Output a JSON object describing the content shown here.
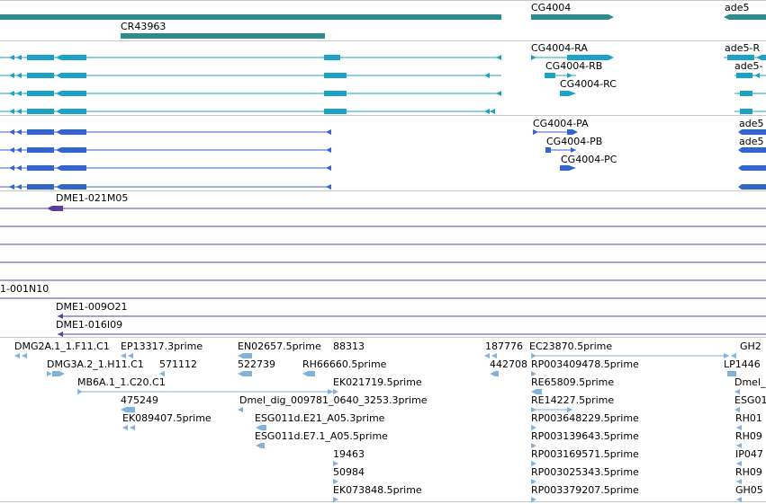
{
  "colors": {
    "gene": "#2e8b8b",
    "transcript_cds": "#1ba3c6",
    "protein": "#3366cc",
    "bac": "#5a3d9e",
    "est": "#7fb3dc",
    "separator": "#c8c8c8"
  },
  "gene_track": {
    "labels": [
      "CG4004",
      "ade5",
      "CR43963"
    ]
  },
  "transcript_track": {
    "labels": [
      "CG4004-RA",
      "ade5-R",
      "CG4004-RB",
      "ade5-",
      "CG4004-RC"
    ]
  },
  "protein_track": {
    "labels": [
      "CG4004-PA",
      "ade5",
      "CG4004-PB",
      "ade5",
      "CG4004-PC"
    ]
  },
  "bac_track": {
    "labels": [
      "DME1-021M05",
      "1-001N10",
      "DME1-009O21",
      "DME1-016I09"
    ]
  },
  "est_track": {
    "labels": [
      "DMG2A.1_1.F11.C1",
      "EP13317.3prime",
      "EN02657.5prime",
      "88313",
      "187776",
      "EC23870.5prime",
      "GH2",
      "DMG3A.2_1.H11.C1",
      "571112",
      "522739",
      "RH66660.5prime",
      "442708",
      "RP003409478.5prime",
      "LP1446",
      "MB6A.1_1.C20.C1",
      "EK021719.5prime",
      "RE65809.5prime",
      "Dmel_",
      "475249",
      "Dmel_dig_009781_0640_3253.3prime",
      "RE14227.5prime",
      "ESG01",
      "EK089407.5prime",
      "ESG011d.E21_A05.3prime",
      "RP003648229.5prime",
      "RH01",
      "ESG011d.E7.1_A05.5prime",
      "RP003139643.5prime",
      "RH09",
      "19463",
      "RP003169571.5prime",
      "IP047",
      "50984",
      "RP003025343.5prime",
      "RH09",
      "EK073848.5prime",
      "RP003379207.5prime",
      "GH05"
    ]
  }
}
